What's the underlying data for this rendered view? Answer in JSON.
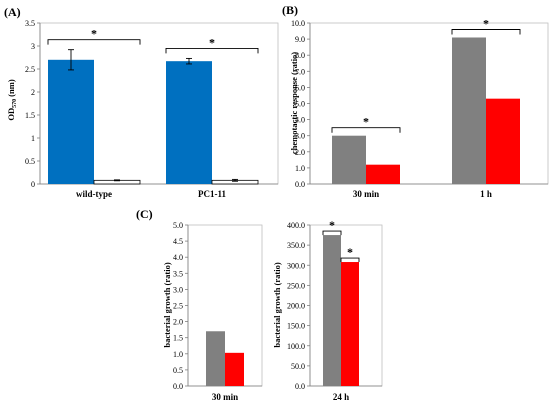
{
  "panels": [
    {
      "id": "A",
      "label": "(A)"
    },
    {
      "id": "B",
      "label": "(B)"
    },
    {
      "id": "C",
      "label": "(C)"
    }
  ],
  "colors": {
    "blue": "#0070C0",
    "gray": "#808080",
    "red": "#FF0000",
    "white": "#FFFFFF"
  },
  "chart_data": [
    {
      "panel": "A",
      "type": "bar",
      "ylabel_main": "OD",
      "ylabel_sub": "570",
      "ylabel_unit": " (nm)",
      "ylim": [
        0,
        3.5
      ],
      "yticks": [
        0,
        0.5,
        1,
        1.5,
        2,
        2.5,
        3,
        3.5
      ],
      "ytick_labels": [
        "0",
        "0.5",
        "1",
        "1.5",
        "2",
        "2.5",
        "3",
        "3.5"
      ],
      "categories": [
        "wild-type",
        "PC1-11"
      ],
      "series": [
        {
          "color": "#0070C0",
          "values": [
            2.7,
            2.67
          ],
          "errors": [
            0.22,
            0.06
          ]
        },
        {
          "color": "#FFFFFF",
          "values": [
            0.08,
            0.08
          ],
          "errors": [
            0.01,
            0.02
          ]
        }
      ],
      "annotations": [
        "*",
        "*"
      ],
      "grid": false
    },
    {
      "panel": "B",
      "type": "bar",
      "ylabel": "chemotactic response (ratio)",
      "ylim": [
        0,
        10
      ],
      "yticks": [
        0,
        1,
        2,
        3,
        4,
        5,
        6,
        7,
        8,
        9,
        10
      ],
      "ytick_labels": [
        "0.0",
        "1.0",
        "2.0",
        "3.0",
        "4.0",
        "5.0",
        "6.0",
        "7.0",
        "8.0",
        "9.0",
        "10.0"
      ],
      "categories": [
        "30 min",
        "1 h"
      ],
      "series": [
        {
          "color": "#808080",
          "values": [
            3.0,
            9.1
          ]
        },
        {
          "color": "#FF0000",
          "values": [
            1.2,
            5.3
          ]
        }
      ],
      "annotations": [
        "*",
        "*"
      ],
      "grid": false
    },
    {
      "panel": "C",
      "type": "bar",
      "ylabel": "bacterial growth (ratio)",
      "ylim": [
        0,
        5
      ],
      "yticks": [
        0,
        0.5,
        1,
        1.5,
        2,
        2.5,
        3,
        3.5,
        4,
        4.5,
        5
      ],
      "ytick_labels": [
        "0.0",
        "0.5",
        "1.0",
        "1.5",
        "2.0",
        "2.5",
        "3.0",
        "3.5",
        "4.0",
        "4.5",
        "5.0"
      ],
      "categories": [
        "30 min"
      ],
      "series": [
        {
          "color": "#808080",
          "values": [
            1.7
          ]
        },
        {
          "color": "#FF0000",
          "values": [
            1.03
          ]
        }
      ],
      "annotations": [],
      "grid": false
    },
    {
      "panel": "C",
      "type": "bar",
      "ylabel": "bacterial growth (ratio)",
      "ylim": [
        0,
        400
      ],
      "yticks": [
        0,
        50,
        100,
        150,
        200,
        250,
        300,
        350,
        400
      ],
      "ytick_labels": [
        "0.0",
        "50.0",
        "100.0",
        "150.0",
        "200.0",
        "250.0",
        "300.0",
        "350.0",
        "400.0"
      ],
      "categories": [
        "24 h"
      ],
      "series": [
        {
          "color": "#808080",
          "values": [
            375
          ]
        },
        {
          "color": "#FF0000",
          "values": [
            308
          ]
        }
      ],
      "annotations": [
        "*",
        "*"
      ],
      "grid": false
    }
  ]
}
